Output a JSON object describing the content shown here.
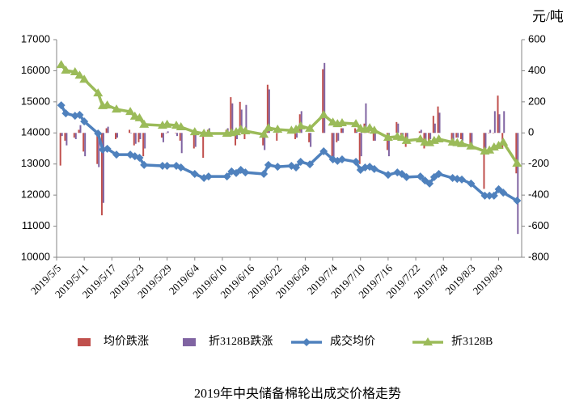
{
  "chart_data": {
    "type": "bar-line",
    "title": "2019年中央储备棉轮出成交价格走势",
    "y2_label": "元/吨",
    "grid": false,
    "x": [
      "2019/5/6",
      "2019/5/7",
      "2019/5/9",
      "2019/5/10",
      "2019/5/11",
      "2019/5/14",
      "2019/5/15",
      "2019/5/16",
      "2019/5/18",
      "2019/5/21",
      "2019/5/22",
      "2019/5/23",
      "2019/5/24",
      "2019/5/28",
      "2019/5/29",
      "2019/5/31",
      "2019/6/1",
      "2019/6/4",
      "2019/6/6",
      "2019/6/7",
      "2019/6/11",
      "2019/6/12",
      "2019/6/13",
      "2019/6/14",
      "2019/6/15",
      "2019/6/19",
      "2019/6/20",
      "2019/6/22",
      "2019/6/25",
      "2019/6/26",
      "2019/6/27",
      "2019/6/29",
      "2019/7/2",
      "2019/7/4",
      "2019/7/5",
      "2019/7/6",
      "2019/7/9",
      "2019/7/10",
      "2019/7/11",
      "2019/7/12",
      "2019/7/13",
      "2019/7/16",
      "2019/7/18",
      "2019/7/19",
      "2019/7/20",
      "2019/7/23",
      "2019/7/24",
      "2019/7/25",
      "2019/7/26",
      "2019/7/27",
      "2019/7/30",
      "2019/7/31",
      "2019/8/1",
      "2019/8/3",
      "2019/8/6",
      "2019/8/7",
      "2019/8/8",
      "2019/8/9",
      "2019/8/10",
      "2019/8/13"
    ],
    "xlim": [
      "2019/5/5",
      "2019/8/14"
    ],
    "xticks": [
      "2019/5/5",
      "2019/5/11",
      "2019/5/17",
      "2019/5/23",
      "2019/5/29",
      "2019/6/4",
      "2019/6/10",
      "2019/6/16",
      "2019/6/22",
      "2019/6/28",
      "2019/7/4",
      "2019/7/10",
      "2019/7/16",
      "2019/7/22",
      "2019/7/28",
      "2019/8/3",
      "2019/8/9"
    ],
    "ylim": [
      10000,
      17000
    ],
    "yticks": [
      10000,
      11000,
      12000,
      13000,
      14000,
      15000,
      16000,
      17000
    ],
    "y2lim": [
      -800,
      600
    ],
    "y2ticks": [
      -800,
      -600,
      -400,
      -200,
      0,
      200,
      400,
      600
    ],
    "series": [
      {
        "name": "均价跌涨",
        "type": "bar",
        "axis": "y2",
        "color": "#c0504d",
        "values": [
          -210,
          -50,
          -30,
          20,
          -120,
          -200,
          -530,
          30,
          -40,
          20,
          -80,
          -60,
          -150,
          -30,
          0,
          0,
          -50,
          -100,
          -160,
          20,
          20,
          230,
          -80,
          200,
          -40,
          -80,
          310,
          -50,
          10,
          -40,
          120,
          -60,
          410,
          -150,
          -60,
          30,
          30,
          -200,
          60,
          40,
          -50,
          -110,
          70,
          -40,
          -90,
          10,
          -100,
          -80,
          110,
          170,
          -80,
          -30,
          -40,
          -100,
          -360,
          0,
          0,
          240,
          -100,
          -260
        ]
      },
      {
        "name": "折3128B跌涨",
        "type": "bar",
        "axis": "y2",
        "color": "#8064a2",
        "values": [
          -20,
          -80,
          -40,
          50,
          -150,
          -220,
          -450,
          40,
          -30,
          0,
          -70,
          -40,
          -100,
          -60,
          10,
          -20,
          -130,
          -90,
          10,
          30,
          30,
          190,
          -40,
          150,
          180,
          -110,
          280,
          20,
          30,
          -30,
          140,
          -90,
          450,
          -160,
          -50,
          30,
          20,
          -150,
          190,
          0,
          -50,
          -150,
          60,
          -30,
          -60,
          20,
          -60,
          -40,
          60,
          130,
          -60,
          -30,
          -50,
          -80,
          -100,
          20,
          140,
          120,
          140,
          -650
        ]
      },
      {
        "name": "成交均价",
        "type": "line",
        "marker": "diamond",
        "color": "#4f81bd",
        "values": [
          14890,
          14630,
          14550,
          14580,
          14370,
          13980,
          13460,
          13490,
          13300,
          13300,
          13250,
          13200,
          12970,
          12940,
          12940,
          12940,
          12890,
          12680,
          12550,
          12600,
          12600,
          12760,
          12710,
          12810,
          12730,
          12680,
          12970,
          12910,
          12940,
          12890,
          13070,
          12990,
          13410,
          13150,
          13100,
          13150,
          13070,
          12810,
          12890,
          12910,
          12840,
          12650,
          12730,
          12680,
          12580,
          12600,
          12470,
          12370,
          12580,
          12680,
          12550,
          12520,
          12500,
          12370,
          11980,
          11980,
          11980,
          12190,
          12080,
          11820
        ]
      },
      {
        "name": "折3128B",
        "type": "line",
        "marker": "triangle",
        "color": "#9bbb59",
        "values": [
          16190,
          16010,
          15960,
          15850,
          15720,
          15280,
          14870,
          14890,
          14760,
          14680,
          14530,
          14480,
          14270,
          14240,
          14270,
          14240,
          14190,
          14030,
          13980,
          13980,
          13980,
          14000,
          14030,
          14110,
          14060,
          13950,
          14160,
          14110,
          14080,
          14110,
          14220,
          14140,
          14580,
          14340,
          14290,
          14320,
          14290,
          14140,
          14110,
          14160,
          14080,
          13850,
          13880,
          13850,
          13750,
          13800,
          13700,
          13680,
          13750,
          13800,
          13700,
          13680,
          13650,
          13570,
          13410,
          13440,
          13540,
          13590,
          13700,
          13020
        ]
      }
    ]
  }
}
